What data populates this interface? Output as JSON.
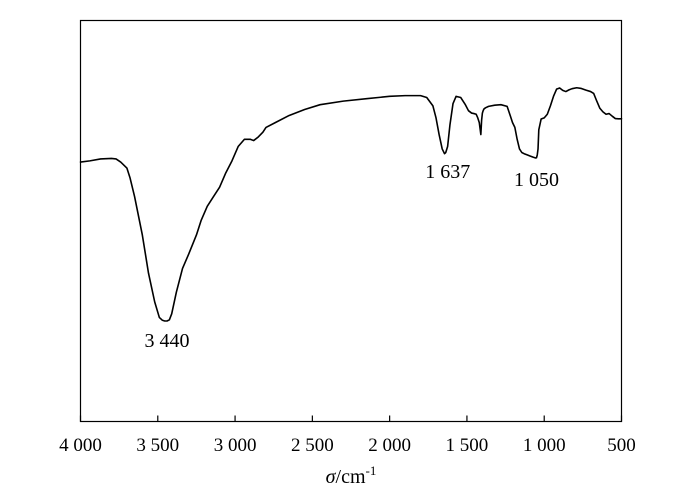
{
  "chart_data": {
    "type": "line",
    "title": "",
    "xlabel": "σ/cm",
    "xlabel_sup": "-1",
    "ylabel": "",
    "x_reversed": true,
    "xlim": [
      4000,
      500
    ],
    "x_ticks": [
      {
        "value": 4000,
        "label": "4 000"
      },
      {
        "value": 3500,
        "label": "3 500"
      },
      {
        "value": 3000,
        "label": "3 000"
      },
      {
        "value": 2500,
        "label": "2 500"
      },
      {
        "value": 2000,
        "label": "2 000"
      },
      {
        "value": 1500,
        "label": "1 500"
      },
      {
        "value": 1000,
        "label": "1 000"
      },
      {
        "value": 500,
        "label": "500"
      }
    ],
    "y_ticks_shown": false,
    "grid": false,
    "annotations": [
      {
        "text": "3 440",
        "x": 3440
      },
      {
        "text": "1 637",
        "x": 1637
      },
      {
        "text": "1 050",
        "x": 1050
      }
    ],
    "series": [
      {
        "x": [
          4000,
          3940,
          3870,
          3800,
          3770,
          3740,
          3700,
          3680,
          3650,
          3600,
          3560,
          3520,
          3490,
          3470,
          3455,
          3440,
          3425,
          3410,
          3380,
          3340,
          3300,
          3250,
          3220,
          3180,
          3140,
          3100,
          3060,
          3020,
          2980,
          2940,
          2900,
          2880,
          2850,
          2820,
          2800,
          2740,
          2650,
          2550,
          2450,
          2300,
          2150,
          2000,
          1900,
          1800,
          1760,
          1720,
          1700,
          1680,
          1660,
          1645,
          1637,
          1625,
          1610,
          1590,
          1570,
          1540,
          1510,
          1490,
          1470,
          1455,
          1440,
          1430,
          1420,
          1410,
          1405,
          1400,
          1395,
          1390,
          1380,
          1360,
          1320,
          1280,
          1240,
          1220,
          1205,
          1190,
          1175,
          1160,
          1145,
          1130,
          1110,
          1090,
          1070,
          1055,
          1050,
          1045,
          1040,
          1035,
          1020,
          1000,
          980,
          960,
          940,
          920,
          900,
          880,
          860,
          840,
          820,
          790,
          760,
          730,
          700,
          680,
          660,
          640,
          620,
          600,
          580,
          560,
          540,
          520,
          500
        ],
        "y": [
          66.5,
          67,
          67.8,
          68,
          67.8,
          66.5,
          64,
          60,
          52,
          36,
          20,
          8,
          1.5,
          0.3,
          0,
          0,
          0.5,
          3,
          12,
          22,
          28,
          36,
          42,
          48,
          52,
          56,
          62,
          67,
          73,
          76,
          76,
          75.5,
          77,
          79,
          81,
          83,
          86,
          88.5,
          90.5,
          92,
          93,
          94,
          94.3,
          94.3,
          93.5,
          90,
          85,
          78,
          72,
          70,
          70.5,
          73,
          82,
          91,
          94,
          93.5,
          90.5,
          88,
          87,
          86.8,
          86.5,
          85,
          83,
          78,
          84,
          87,
          88,
          88.7,
          89.2,
          89.8,
          90.3,
          90.5,
          89.8,
          86,
          83,
          81,
          76,
          72,
          70.5,
          70,
          69.5,
          69,
          68.5,
          68.2,
          68.3,
          69.5,
          72,
          80,
          84.5,
          85,
          86.5,
          90,
          94,
          97,
          97.5,
          96.5,
          96,
          96.7,
          97.2,
          97.6,
          97.3,
          96.6,
          96,
          95.2,
          92,
          89,
          87.5,
          86.5,
          86.8,
          85.7,
          84.7,
          84.6,
          84.6
        ]
      }
    ],
    "y_range": [
      -5,
      112
    ]
  }
}
